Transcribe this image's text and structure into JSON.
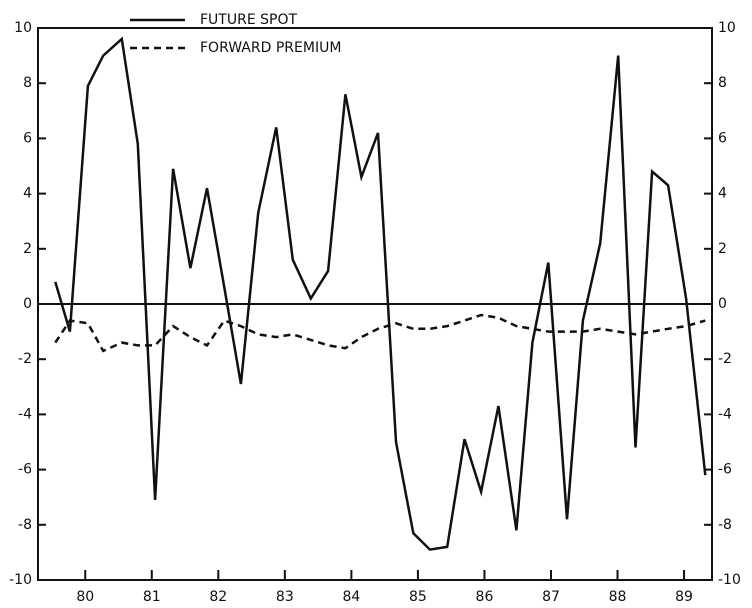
{
  "chart_data": {
    "type": "line",
    "x": [
      1980.05,
      1980.27,
      1980.54,
      1980.77,
      1981.05,
      1981.29,
      1981.55,
      1981.82,
      1982.08,
      1982.33,
      1982.59,
      1982.84,
      1983.1,
      1983.37,
      1983.62,
      1983.89,
      1984.15,
      1984.41,
      1984.65,
      1984.9,
      1985.17,
      1985.43,
      1985.68,
      1985.94,
      1986.2,
      1986.45,
      1986.71,
      1986.98,
      1987.22,
      1987.46,
      1987.74,
      1987.98,
      1988.24,
      1988.51,
      1988.77,
      1989.02,
      1989.26,
      1989.53,
      1989.82
    ],
    "series": [
      {
        "name": "FUTURE SPOT",
        "color": "#111111",
        "dash": "solid",
        "values": [
          0.8,
          -1.0,
          7.9,
          9.0,
          9.6,
          5.8,
          -7.1,
          4.9,
          1.3,
          4.2,
          0.6,
          -2.9,
          3.3,
          6.4,
          1.6,
          0.2,
          1.2,
          7.6,
          4.6,
          6.2,
          -5.0,
          -8.3,
          -8.9,
          -8.8,
          -4.9,
          -6.8,
          -3.7,
          -8.2,
          -1.4,
          1.5,
          -7.8,
          -0.6,
          2.2,
          9.0,
          -5.2,
          4.8,
          4.3,
          0.2,
          -6.2
        ]
      },
      {
        "name": "FORWARD PREMIUM",
        "color": "#111111",
        "dash": "dashed",
        "values": [
          -1.4,
          -0.6,
          -0.7,
          -1.7,
          -1.4,
          -1.5,
          -1.5,
          -0.8,
          -1.2,
          -1.5,
          -0.6,
          -0.8,
          -1.1,
          -1.2,
          -1.1,
          -1.3,
          -1.5,
          -1.6,
          -1.2,
          -0.9,
          -0.7,
          -0.9,
          -0.9,
          -0.8,
          -0.6,
          -0.4,
          -0.5,
          -0.8,
          -0.9,
          -1.0,
          -1.0,
          -1.0,
          -0.9,
          -1.0,
          -1.1,
          -1.0,
          -0.9,
          -0.8,
          -0.6
        ]
      }
    ],
    "xlim": [
      1979.79,
      1989.92
    ],
    "xticks": [
      {
        "value": 1980.5,
        "label": "80"
      },
      {
        "value": 1981.5,
        "label": "81"
      },
      {
        "value": 1982.5,
        "label": "82"
      },
      {
        "value": 1983.5,
        "label": "83"
      },
      {
        "value": 1984.5,
        "label": "84"
      },
      {
        "value": 1985.5,
        "label": "85"
      },
      {
        "value": 1986.5,
        "label": "86"
      },
      {
        "value": 1987.5,
        "label": "87"
      },
      {
        "value": 1988.5,
        "label": "88"
      },
      {
        "value": 1989.5,
        "label": "89"
      }
    ],
    "ylim": [
      -10,
      10
    ],
    "yticks": [
      -10,
      -8,
      -6,
      -4,
      -2,
      0,
      2,
      4,
      6,
      8,
      10
    ],
    "legend": "top"
  }
}
